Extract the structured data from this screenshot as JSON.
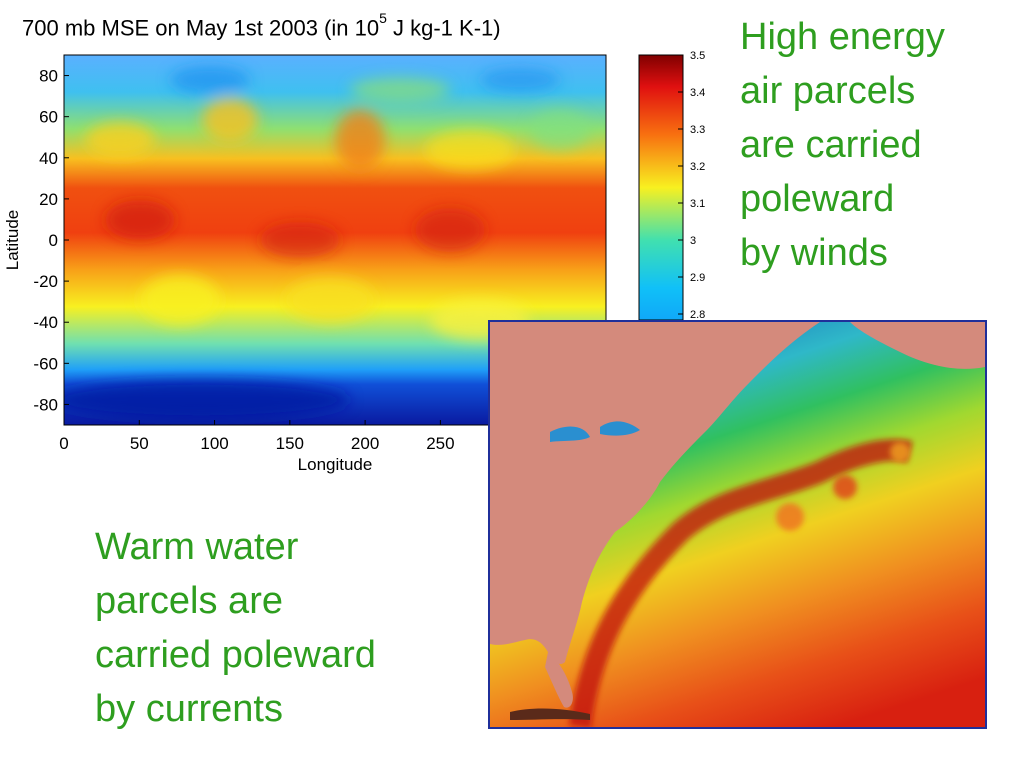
{
  "chart_data": {
    "type": "heatmap",
    "title": "700 mb MSE on May 1st 2003 (in 10",
    "title_exponent": "5",
    "title_units": " J kg-1 K-1)",
    "xlabel": "Longitude",
    "ylabel": "Latitude",
    "xlim": [
      0,
      360
    ],
    "ylim": [
      -90,
      90
    ],
    "x_ticks": [
      "0",
      "50",
      "100",
      "150",
      "200",
      "250"
    ],
    "y_ticks": [
      "80",
      "60",
      "40",
      "20",
      "0",
      "-20",
      "-40",
      "-60",
      "-80"
    ],
    "colorbar_ticks": [
      "3.5",
      "3.4",
      "3.3",
      "3.2",
      "3.1",
      "3",
      "2.9",
      "2.8"
    ],
    "colorbar_range": [
      2.7,
      3.5
    ],
    "colormap": "jet",
    "grid": false,
    "latitude_profile": {
      "lat": [
        80,
        60,
        40,
        20,
        0,
        -20,
        -40,
        -60,
        -80
      ],
      "mse": [
        2.88,
        2.95,
        3.15,
        3.32,
        3.36,
        3.3,
        3.12,
        2.92,
        2.76
      ]
    }
  },
  "annotations": {
    "winds": [
      "High energy",
      "air parcels",
      "are carried",
      "poleward",
      "by winds"
    ],
    "currents": [
      "Warm water",
      "parcels are",
      "carried poleward",
      "by currents"
    ]
  },
  "colors": {
    "annotation_text": "#2e9e1f",
    "map_border": "#1f2f9a",
    "land": "#d48a7c",
    "sea_cold": "#2fb8c8",
    "sea_warm": "#e83010"
  },
  "inset_image": "sea-surface-temperature-map-north-atlantic"
}
